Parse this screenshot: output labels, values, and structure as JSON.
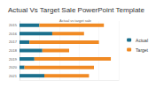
{
  "chart_data": {
    "type": "bar",
    "title": "Actual Vs Target Sale PowerPoint Template",
    "subtitle": "Actual vs target sale",
    "orientation": "horizontal",
    "stacked": true,
    "categories": [
      "2015",
      "2016",
      "2017",
      "2018",
      "2019",
      "2020",
      "2021"
    ],
    "series": [
      {
        "name": "Actual",
        "color": "#1b6f8c",
        "values": [
          20,
          33,
          10,
          23,
          15,
          5,
          25
        ]
      },
      {
        "name": "Target",
        "color": "#f08a24",
        "values": [
          65,
          32,
          70,
          27,
          77,
          70,
          45
        ]
      }
    ],
    "xlim": [
      0,
      100
    ],
    "xticks": [
      0,
      20,
      40,
      60,
      80,
      100
    ],
    "grid": true,
    "legend": "right",
    "tick_labels": "y"
  }
}
